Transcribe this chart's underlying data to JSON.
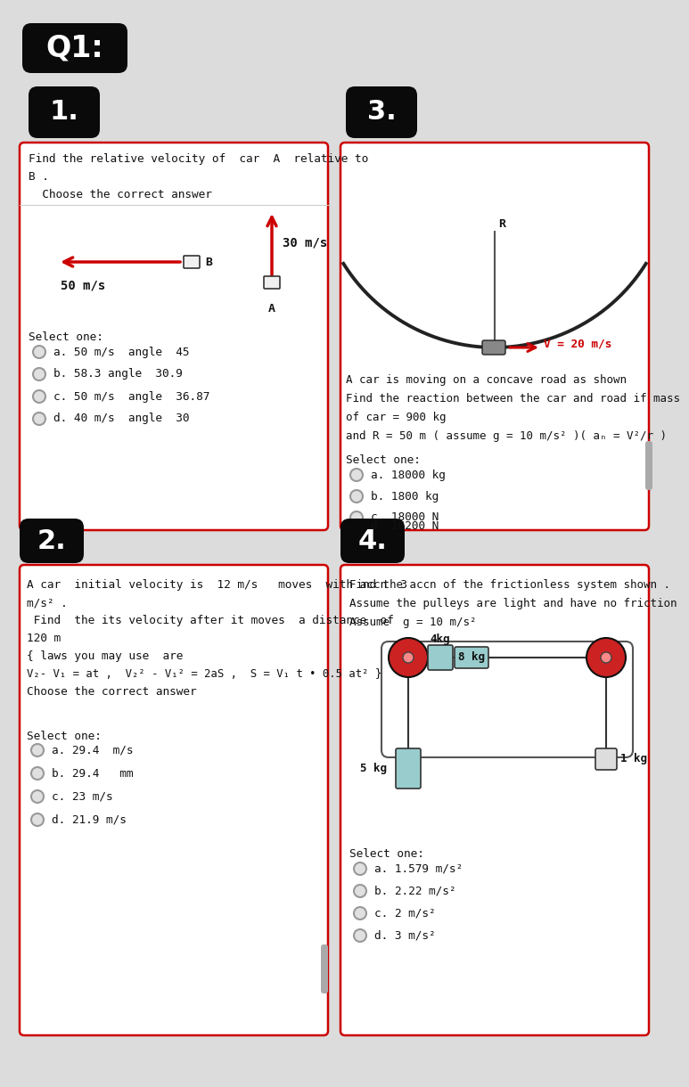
{
  "bg_color": "#dcdcdc",
  "card_bg": "#ffffff",
  "red_border": "#cc0000",
  "q1_text_line1": "Find the relative velocity of  car  A  relative to",
  "q1_text_line2": "B .",
  "q1_choose": "  Choose the correct answer",
  "q1_vel_label": "50 m/s",
  "q1_select": "Select one:",
  "q1_opts": [
    "a. 50 m/s  angle  45",
    "b. 58.3 angle  30.9",
    "c. 50 m/s  angle  36.87",
    "d. 40 m/s  angle  30"
  ],
  "q2_lines": [
    "A car  initial velocity is  12 m/s   moves  with accn  3",
    "m/s² .",
    " Find  the its velocity after it moves  a distance  of",
    "120 m",
    "{ laws you may use  are",
    "V₂- V₁ = at ,  V₂² - V₁² = 2aS ,  S = V₁ t • 0.5 at² }",
    "Choose the correct answer"
  ],
  "q2_select": "Select one:",
  "q2_opts": [
    "a. 29.4  m/s",
    "b. 29.4   mm",
    "c. 23 m/s",
    "d. 21.9 m/s"
  ],
  "q3_lines": [
    "A car is moving on a concave road as shown",
    "Find the reaction between the car and road if mass",
    "of car = 900 kg",
    "and R = 50 m ( assume g = 10 m/s² )( aₙ = V²/r )"
  ],
  "q3_vel": "V = 20 m/s",
  "q3_select": "Select one:",
  "q3_opts": [
    "a. 18000 kg",
    "b. 1800 kg",
    "c. 18000 N",
    "d. 16200 N"
  ],
  "q4_lines": [
    "Find the accn of the frictionless system shown .",
    "Assume the pulleys are light and have no friction",
    "Assume  g = 10 m/s²"
  ],
  "q4_select": "Select one:",
  "q4_opts": [
    "a. 1.579 m/s²",
    "b. 2.22 m/s²",
    "c. 2 m/s²",
    "d. 3 m/s²"
  ]
}
